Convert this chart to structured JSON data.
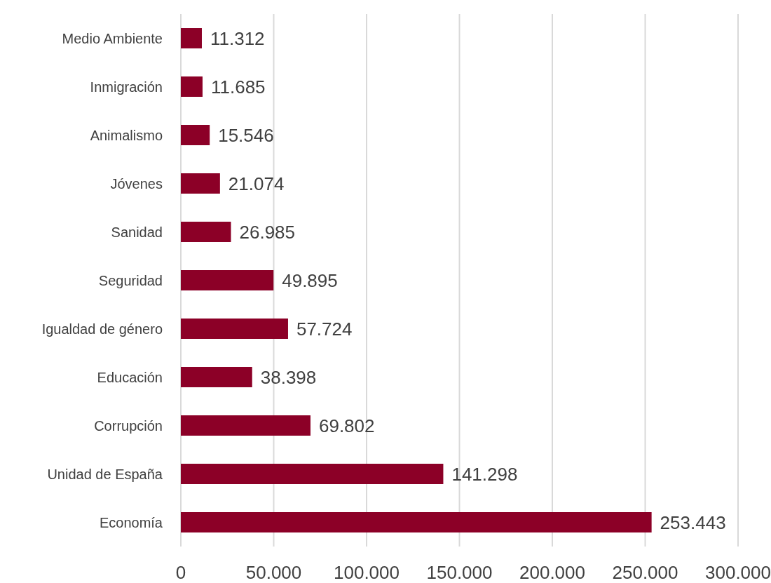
{
  "chart_data": {
    "type": "bar",
    "orientation": "horizontal",
    "categories": [
      "Medio Ambiente",
      "Inmigración",
      "Animalismo",
      "Jóvenes",
      "Sanidad",
      "Seguridad",
      "Igualdad de género",
      "Educación",
      "Corrupción",
      "Unidad de España",
      "Economía"
    ],
    "values": [
      11312,
      11685,
      15546,
      21074,
      26985,
      49895,
      57724,
      38398,
      69802,
      141298,
      253443
    ],
    "value_labels": [
      "11.312",
      "11.685",
      "15.546",
      "21.074",
      "26.985",
      "49.895",
      "57.724",
      "38.398",
      "69.802",
      "141.298",
      "253.443"
    ],
    "color": "#8c0027",
    "xlim": [
      0,
      300000
    ],
    "xticks": [
      0,
      {
        "value": 50000,
        "label": "50.000"
      },
      {
        "value": 100000,
        "label": "100.000"
      },
      {
        "value": 150000,
        "label": "150.000"
      },
      {
        "value": 200000,
        "label": "200.000"
      },
      {
        "value": 250000,
        "label": "250.000"
      },
      {
        "value": 300000,
        "label": "300.000"
      }
    ],
    "grid": "x"
  }
}
